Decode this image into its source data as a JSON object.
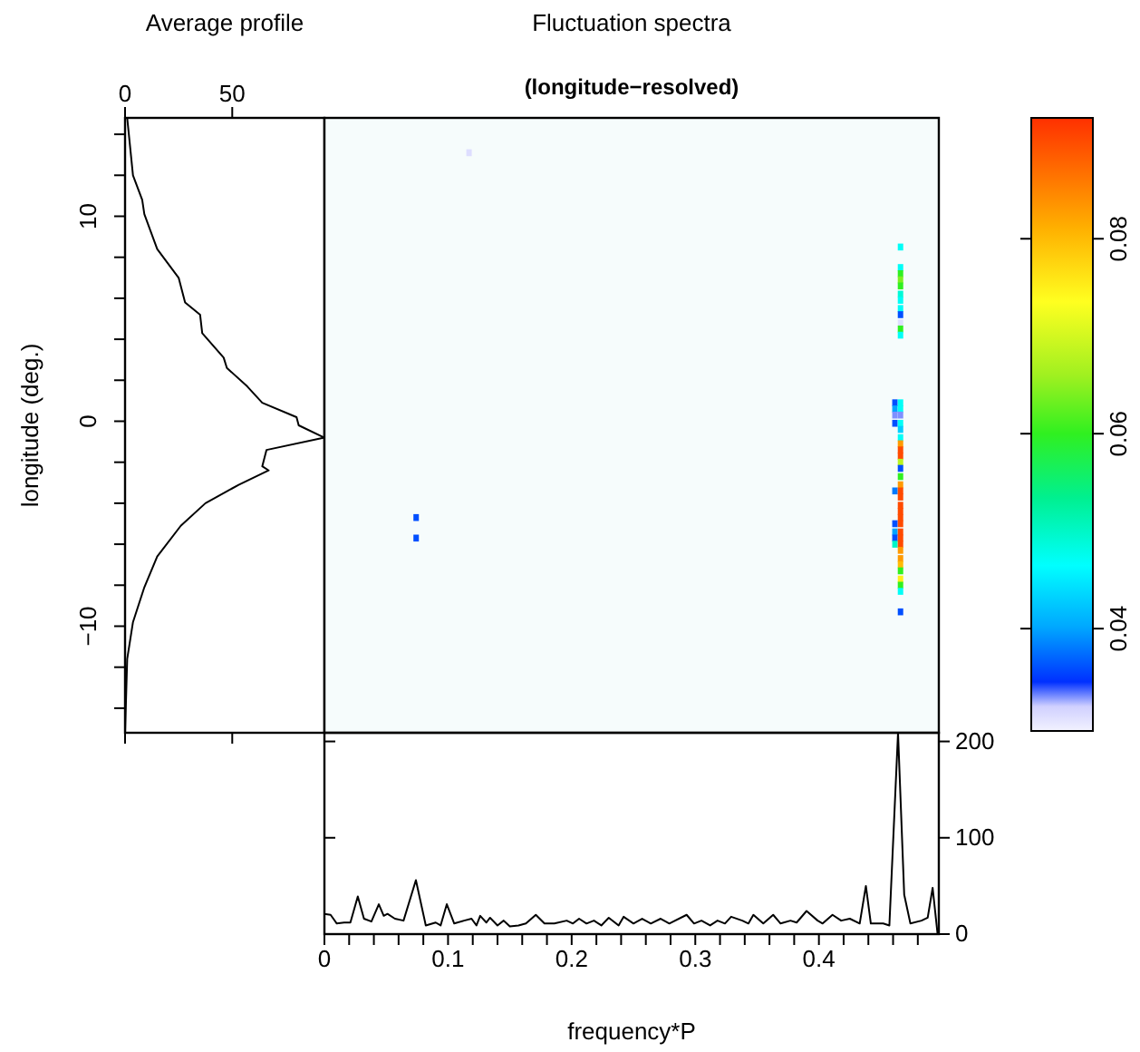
{
  "chart_data": [
    {
      "type": "line",
      "title": "Average profile",
      "ylabel": "longitude (deg.)",
      "xlim": [
        0,
        93
      ],
      "xticks": [
        0,
        50
      ],
      "ylim": [
        -15.2,
        14.8
      ],
      "yticks": [
        {
          "value": -14,
          "label": null
        },
        {
          "value": -12,
          "label": null
        },
        {
          "value": -10,
          "label": "−10"
        },
        {
          "value": -8,
          "label": null
        },
        {
          "value": -6,
          "label": null
        },
        {
          "value": -4,
          "label": null
        },
        {
          "value": -2,
          "label": null
        },
        0,
        {
          "value": 2,
          "label": null
        },
        {
          "value": 4,
          "label": null
        },
        {
          "value": 6,
          "label": null
        },
        {
          "value": 8,
          "label": null
        },
        10,
        {
          "value": 12,
          "label": null
        },
        {
          "value": 14,
          "label": null
        }
      ],
      "series": [
        {
          "color": "#000000",
          "x": [
            1,
            3.7,
            8,
            9,
            15,
            25,
            28,
            35,
            36,
            46,
            47.5,
            57,
            64,
            80,
            81,
            93,
            66,
            64,
            67,
            53,
            37.5,
            26,
            15,
            9,
            3.7,
            1,
            0
          ],
          "values": [
            14.8,
            12.0,
            10.8,
            10.1,
            8.4,
            7.0,
            5.8,
            5.2,
            4.3,
            3.1,
            2.6,
            1.7,
            0.9,
            0.2,
            -0.2,
            -0.8,
            -1.4,
            -2.2,
            -2.4,
            -3.1,
            -4.0,
            -5.1,
            -6.6,
            -8.1,
            -9.8,
            -11.6,
            -15.2
          ]
        }
      ]
    },
    {
      "type": "scatter",
      "title": "Fluctuation spectra",
      "subtitle": "(longitude−resolved)",
      "marker": "square",
      "xlim": [
        0,
        0.497
      ],
      "ylim": [
        -15.2,
        14.8
      ],
      "clim": [
        0.0295,
        0.0924
      ],
      "cticks": [
        0.04,
        0.06,
        0.08
      ],
      "series": [
        {
          "x": [
            0.466,
            0.466,
            0.466,
            0.466,
            0.466,
            0.466,
            0.466,
            0.466,
            0.466,
            0.466,
            0.466,
            0.466,
            0.4615,
            0.466,
            0.4615,
            0.466,
            0.4615,
            0.466,
            0.4615,
            0.466,
            0.466,
            0.466,
            0.466,
            0.466,
            0.466,
            0.466,
            0.466,
            0.466,
            0.466,
            0.4615,
            0.466,
            0.466,
            0.466,
            0.466,
            0.466,
            0.4615,
            0.466,
            0.4615,
            0.466,
            0.4615,
            0.466,
            0.4615,
            0.466,
            0.466,
            0.466,
            0.466,
            0.466,
            0.466,
            0.466,
            0.466,
            0.466,
            0.117,
            0.0742,
            0.0742
          ],
          "values": [
            8.5,
            7.5,
            7.2,
            6.9,
            6.6,
            6.2,
            5.9,
            5.5,
            5.2,
            4.8,
            4.5,
            4.2,
            0.9,
            0.9,
            0.6,
            0.6,
            0.3,
            0.3,
            -0.1,
            -0.1,
            -0.4,
            -0.8,
            -1.1,
            -1.4,
            -1.7,
            -2.0,
            -2.3,
            -2.7,
            -3.1,
            -3.4,
            -3.4,
            -3.7,
            -4.1,
            -4.4,
            -4.7,
            -5.0,
            -5.0,
            -5.4,
            -5.4,
            -5.7,
            -5.7,
            -6.0,
            -6.0,
            -6.3,
            -6.7,
            -7.0,
            -7.3,
            -7.7,
            -8.0,
            -8.3,
            -9.3,
            13.1,
            -4.7,
            -5.7
          ],
          "cvalues": [
            0.047,
            0.047,
            0.06,
            0.064,
            0.06,
            0.049,
            0.047,
            0.047,
            0.036,
            0.031,
            0.06,
            0.047,
            0.036,
            0.047,
            0.04,
            0.047,
            0.033,
            0.033,
            0.036,
            0.047,
            0.043,
            0.047,
            0.083,
            0.09,
            0.09,
            0.068,
            0.036,
            0.06,
            0.083,
            0.038,
            0.09,
            0.09,
            0.09,
            0.09,
            0.09,
            0.036,
            0.09,
            0.04,
            0.09,
            0.036,
            0.09,
            0.05,
            0.09,
            0.083,
            0.083,
            0.08,
            0.06,
            0.075,
            0.06,
            0.047,
            0.036,
            0.031,
            0.036,
            0.036
          ]
        }
      ]
    },
    {
      "type": "line",
      "xlabel": "frequency*P",
      "xlim": [
        0,
        0.497
      ],
      "ylim": [
        0,
        209
      ],
      "yticks": [
        0,
        100,
        200
      ],
      "xticks": [
        0,
        {
          "value": 0.02,
          "label": null
        },
        {
          "value": 0.04,
          "label": null
        },
        {
          "value": 0.06,
          "label": null
        },
        {
          "value": 0.08,
          "label": null
        },
        0.1,
        {
          "value": 0.12,
          "label": null
        },
        {
          "value": 0.14,
          "label": null
        },
        {
          "value": 0.16,
          "label": null
        },
        {
          "value": 0.18,
          "label": null
        },
        0.2,
        {
          "value": 0.22,
          "label": null
        },
        {
          "value": 0.24,
          "label": null
        },
        {
          "value": 0.26,
          "label": null
        },
        {
          "value": 0.28,
          "label": null
        },
        0.3,
        {
          "value": 0.32,
          "label": null
        },
        {
          "value": 0.34,
          "label": null
        },
        {
          "value": 0.36,
          "label": null
        },
        {
          "value": 0.38,
          "label": null
        },
        0.4,
        {
          "value": 0.42,
          "label": null
        },
        {
          "value": 0.44,
          "label": null
        },
        {
          "value": 0.46,
          "label": null
        },
        {
          "value": 0.48,
          "label": null
        }
      ],
      "series": [
        {
          "color": "#000000",
          "x": [
            0,
            0.005,
            0.01,
            0.016,
            0.021,
            0.027,
            0.032,
            0.038,
            0.044,
            0.048,
            0.051,
            0.057,
            0.064,
            0.074,
            0.082,
            0.09,
            0.094,
            0.099,
            0.105,
            0.113,
            0.119,
            0.123,
            0.126,
            0.131,
            0.134,
            0.14,
            0.145,
            0.15,
            0.157,
            0.163,
            0.171,
            0.178,
            0.186,
            0.196,
            0.201,
            0.206,
            0.212,
            0.218,
            0.224,
            0.23,
            0.238,
            0.242,
            0.25,
            0.257,
            0.264,
            0.272,
            0.279,
            0.293,
            0.299,
            0.305,
            0.312,
            0.318,
            0.324,
            0.329,
            0.338,
            0.343,
            0.347,
            0.355,
            0.363,
            0.369,
            0.377,
            0.382,
            0.39,
            0.399,
            0.403,
            0.411,
            0.418,
            0.425,
            0.433,
            0.438,
            0.442,
            0.452,
            0.457,
            0.464,
            0.469,
            0.474,
            0.483,
            0.488,
            0.492,
            0.496
          ],
          "values": [
            21,
            20,
            11,
            12,
            12,
            39,
            16,
            13,
            31,
            19,
            21,
            16,
            14,
            56,
            9,
            12,
            9,
            31,
            11,
            14,
            16,
            9,
            19,
            12,
            17,
            9,
            14,
            8,
            9,
            11,
            20,
            11,
            11,
            14,
            11,
            16,
            11,
            14,
            9,
            17,
            9,
            18,
            11,
            16,
            11,
            16,
            11,
            20,
            11,
            14,
            9,
            14,
            11,
            18,
            14,
            11,
            20,
            11,
            20,
            11,
            14,
            12,
            24,
            14,
            11,
            20,
            14,
            16,
            11,
            50,
            11,
            11,
            9,
            209,
            41,
            11,
            14,
            17,
            48,
            0
          ]
        }
      ]
    }
  ]
}
